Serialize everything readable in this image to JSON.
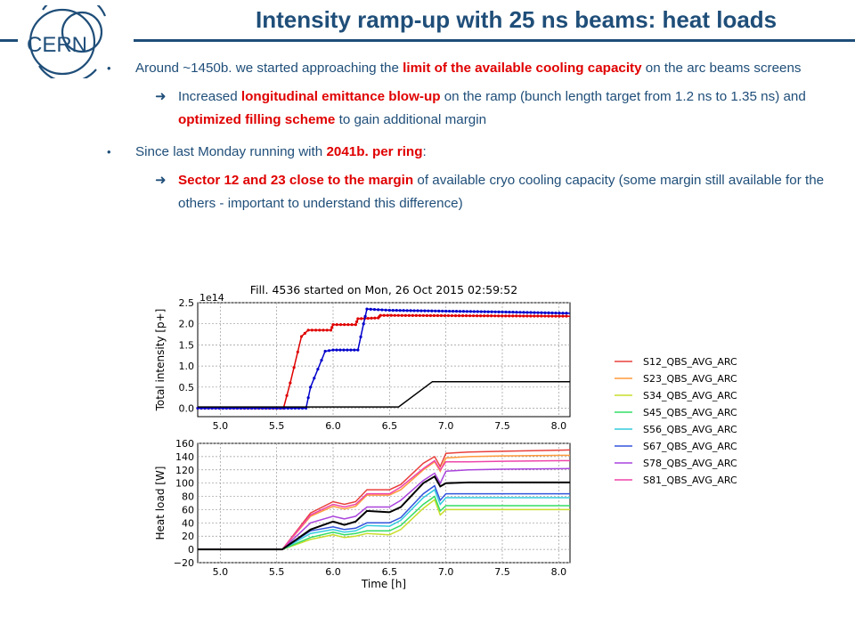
{
  "logo": {
    "text": "CERN"
  },
  "title": "Intensity ramp-up with 25 ns beams: heat loads",
  "bullets": [
    {
      "parts": [
        "Around ~1450b. we started approaching the ",
        "limit of the available cooling capacity",
        " on the arc beams screens"
      ],
      "sub": [
        "Increased ",
        "longitudinal emittance blow-up",
        " on the ramp (bunch length target from 1.2 ns to 1.35 ns) and ",
        "optimized filling scheme",
        " to gain additional margin"
      ]
    },
    {
      "parts": [
        "Since last Monday running with ",
        "2041b. per ring",
        ":"
      ],
      "sub": [
        "Sector 12 and 23 close to the margin",
        " of available cryo cooling capacity (some margin still available for the others - important to understand this difference)"
      ]
    }
  ],
  "chart_data": [
    {
      "type": "line",
      "title": "Fill. 4536 started on Mon, 26 Oct 2015 02:59:52",
      "ylabel": "Total intensity [p+]",
      "yscale_label": "1e14",
      "xlim": [
        4.8,
        8.1
      ],
      "ylim": [
        -0.2,
        2.5
      ],
      "xticks": [
        "5.0",
        "5.5",
        "6.0",
        "6.5",
        "7.0",
        "7.5",
        "8.0"
      ],
      "yticks": [
        "0.0",
        "0.5",
        "1.0",
        "1.5",
        "2.0",
        "2.5"
      ],
      "grid": true,
      "series": [
        {
          "color": "#e00000",
          "x": [
            4.8,
            5.56,
            5.62,
            5.72,
            5.78,
            5.98,
            6.0,
            6.2,
            6.22,
            6.4,
            6.42,
            8.1
          ],
          "y": [
            0,
            0,
            0.6,
            1.7,
            1.85,
            1.85,
            1.98,
            1.98,
            2.12,
            2.14,
            2.2,
            2.18
          ]
        },
        {
          "color": "#0000cc",
          "x": [
            4.8,
            5.76,
            5.8,
            5.93,
            6.0,
            6.22,
            6.27,
            6.3,
            6.5,
            7.0,
            7.5,
            8.1
          ],
          "y": [
            0,
            0,
            0.5,
            1.35,
            1.38,
            1.38,
            2.0,
            2.35,
            2.32,
            2.3,
            2.28,
            2.25
          ]
        },
        {
          "color": "#000000",
          "x": [
            4.8,
            6.58,
            6.88,
            8.1
          ],
          "y": [
            0.03,
            0.03,
            0.63,
            0.63
          ]
        }
      ]
    },
    {
      "type": "line",
      "ylabel": "Heat load [W]",
      "xlabel": "Time [h]",
      "xlim": [
        4.8,
        8.1
      ],
      "ylim": [
        -20,
        160
      ],
      "xticks": [
        "5.0",
        "5.5",
        "6.0",
        "6.5",
        "7.0",
        "7.5",
        "8.0"
      ],
      "yticks": [
        "−20",
        "0",
        "20",
        "40",
        "60",
        "80",
        "100",
        "120",
        "140",
        "160"
      ],
      "grid": true,
      "x": [
        4.8,
        5.55,
        5.8,
        6.0,
        6.1,
        6.2,
        6.3,
        6.5,
        6.6,
        6.8,
        6.9,
        6.95,
        7.0,
        7.2,
        7.5,
        8.1
      ],
      "series": [
        {
          "name": "S12_QBS_AVG_ARC",
          "color": "#e8403c",
          "y": [
            0,
            0,
            55,
            72,
            68,
            72,
            90,
            90,
            98,
            130,
            140,
            125,
            145,
            147,
            148,
            150
          ]
        },
        {
          "name": "S23_QBS_AVG_ARC",
          "color": "#ff9a3c",
          "y": [
            0,
            0,
            50,
            65,
            61,
            65,
            82,
            82,
            90,
            120,
            132,
            118,
            138,
            140,
            141,
            142
          ]
        },
        {
          "name": "S34_QBS_AVG_ARC",
          "color": "#c8dd2a",
          "y": [
            0,
            0,
            15,
            22,
            18,
            20,
            24,
            22,
            30,
            62,
            75,
            52,
            60,
            60,
            60,
            60
          ]
        },
        {
          "name": "S45_QBS_AVG_ARC",
          "color": "#33dd66",
          "y": [
            0,
            0,
            18,
            26,
            22,
            24,
            28,
            28,
            36,
            68,
            80,
            58,
            66,
            66,
            66,
            66
          ]
        },
        {
          "name": "S56_QBS_AVG_ARC",
          "color": "#33ccdd",
          "y": [
            0,
            0,
            24,
            30,
            26,
            28,
            36,
            35,
            44,
            78,
            90,
            68,
            78,
            78,
            78,
            78
          ]
        },
        {
          "name": "S67_QBS_AVG_ARC",
          "color": "#3355dd",
          "y": [
            0,
            0,
            28,
            34,
            30,
            32,
            40,
            40,
            48,
            84,
            96,
            74,
            84,
            84,
            84,
            84
          ]
        },
        {
          "name": "S78_QBS_AVG_ARC",
          "color": "#aa44dd",
          "y": [
            0,
            0,
            40,
            50,
            46,
            50,
            64,
            64,
            74,
            104,
            115,
            100,
            118,
            120,
            121,
            122
          ]
        },
        {
          "name": "S81_QBS_AVG_ARC",
          "color": "#ee44aa",
          "y": [
            0,
            0,
            52,
            68,
            64,
            68,
            84,
            84,
            94,
            122,
            134,
            120,
            132,
            132,
            133,
            134
          ]
        },
        {
          "color": "#000000",
          "y": [
            0,
            0,
            30,
            42,
            37,
            42,
            58,
            56,
            64,
            100,
            110,
            95,
            100,
            101,
            101,
            101
          ]
        }
      ]
    }
  ]
}
